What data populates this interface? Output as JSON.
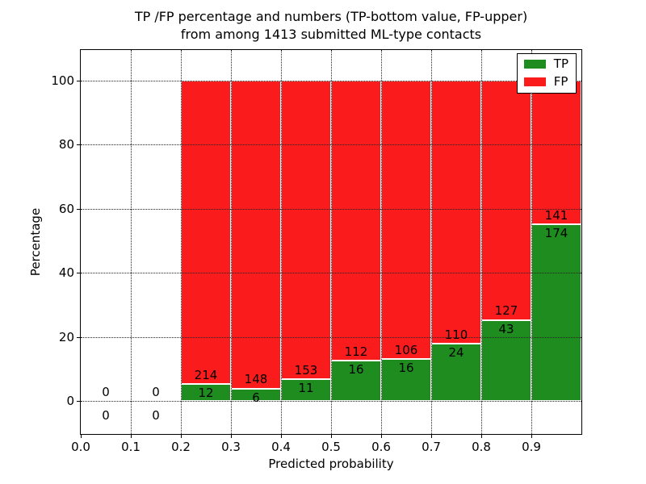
{
  "title": {
    "line1": "TP /FP percentage and numbers (TP-bottom value, FP-upper)",
    "line2": "from among 1413 submitted ML-type contacts"
  },
  "axes": {
    "xlabel": "Predicted probability",
    "ylabel": "Percentage",
    "x_ticks": [
      "0.0",
      "0.1",
      "0.2",
      "0.3",
      "0.4",
      "0.5",
      "0.6",
      "0.7",
      "0.8",
      "0.9"
    ],
    "x_tick_values": [
      0.0,
      0.1,
      0.2,
      0.3,
      0.4,
      0.5,
      0.6,
      0.7,
      0.8,
      0.9
    ],
    "y_ticks": [
      "0",
      "20",
      "40",
      "60",
      "80",
      "100"
    ],
    "y_tick_values": [
      0,
      20,
      40,
      60,
      80,
      100
    ]
  },
  "legend": {
    "items": [
      {
        "label": "TP",
        "color": "#1e8c1e"
      },
      {
        "label": "FP",
        "color": "#fa1c1c"
      }
    ]
  },
  "colors": {
    "tp_green": "#1e8c1e",
    "fp_red": "#fa1c1c",
    "grid": "#222222",
    "background": "#ffffff"
  },
  "chart_data": {
    "type": "bar",
    "stacked": true,
    "normalized_to_100_percent": true,
    "title": "TP /FP percentage and numbers (TP-bottom value, FP-upper) from among 1413 submitted ML-type contacts",
    "xlabel": "Predicted probability",
    "ylabel": "Percentage",
    "xlim": [
      0.0,
      1.0
    ],
    "ylim": [
      -10,
      110
    ],
    "bin_width": 0.1,
    "grid": "dotted",
    "legend_position": "upper right",
    "total_contacts": 1413,
    "label_note": "numbers on bars are raw counts: TP bottom value, FP upper value",
    "bins": [
      {
        "x_start": 0.0,
        "x_end": 0.1,
        "tp": 0,
        "fp": 0,
        "tp_percent": null
      },
      {
        "x_start": 0.1,
        "x_end": 0.2,
        "tp": 0,
        "fp": 0,
        "tp_percent": null
      },
      {
        "x_start": 0.2,
        "x_end": 0.3,
        "tp": 12,
        "fp": 214,
        "tp_percent": 5.3
      },
      {
        "x_start": 0.3,
        "x_end": 0.4,
        "tp": 6,
        "fp": 148,
        "tp_percent": 3.9
      },
      {
        "x_start": 0.4,
        "x_end": 0.5,
        "tp": 11,
        "fp": 153,
        "tp_percent": 6.7
      },
      {
        "x_start": 0.5,
        "x_end": 0.6,
        "tp": 16,
        "fp": 112,
        "tp_percent": 12.5
      },
      {
        "x_start": 0.6,
        "x_end": 0.7,
        "tp": 16,
        "fp": 106,
        "tp_percent": 13.1
      },
      {
        "x_start": 0.7,
        "x_end": 0.8,
        "tp": 24,
        "fp": 110,
        "tp_percent": 17.9
      },
      {
        "x_start": 0.8,
        "x_end": 0.9,
        "tp": 43,
        "fp": 127,
        "tp_percent": 25.3
      },
      {
        "x_start": 0.9,
        "x_end": 1.0,
        "tp": 174,
        "fp": 141,
        "tp_percent": 55.2
      }
    ]
  }
}
